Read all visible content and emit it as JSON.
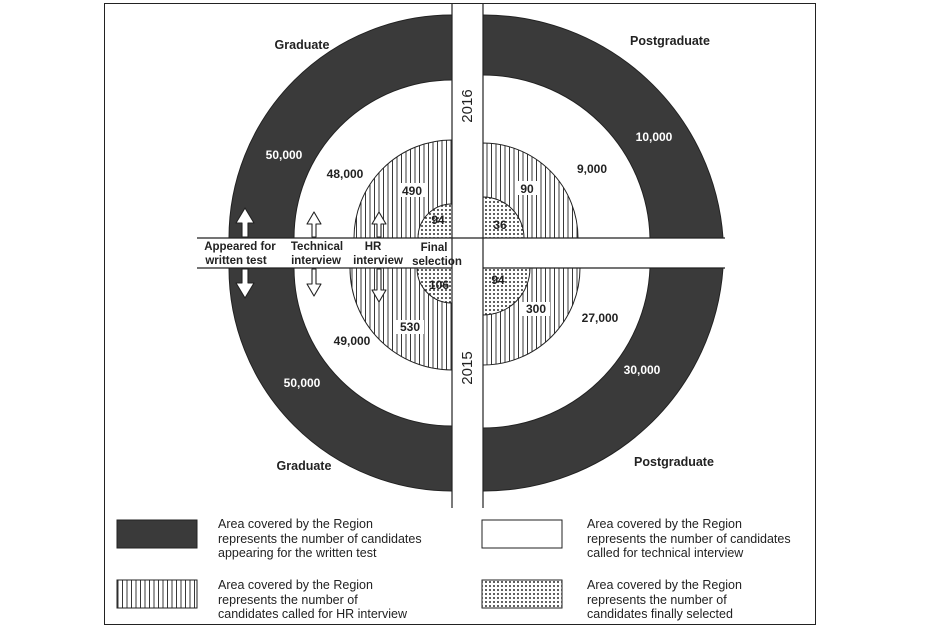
{
  "diagram": {
    "years": {
      "top": "2016",
      "bottom": "2015"
    },
    "quadrant_titles": {
      "top_left": "Graduate",
      "top_right": "Postgraduate",
      "bottom_left": "Graduate",
      "bottom_right": "Postgraduate"
    },
    "values": {
      "graduate_2016": {
        "written_test": "50,000",
        "technical_interview": "48,000",
        "hr_interview": "490",
        "final_selection": "94"
      },
      "postgraduate_2016": {
        "written_test": "10,000",
        "technical_interview": "9,000",
        "hr_interview": "90",
        "final_selection": "36"
      },
      "graduate_2015": {
        "written_test": "50,000",
        "technical_interview": "49,000",
        "hr_interview": "530",
        "final_selection": "106"
      },
      "postgraduate_2015": {
        "written_test": "30,000",
        "technical_interview": "27,000",
        "hr_interview": "300",
        "final_selection": "94"
      }
    },
    "stage_labels": {
      "written_test": [
        "Appeared for",
        "written test"
      ],
      "technical_interview": [
        "Technical",
        "interview"
      ],
      "hr_interview": [
        "HR",
        "interview"
      ],
      "final_selection": [
        "Final",
        "selection"
      ]
    },
    "colors": {
      "ring_fill": "#3a3a3a",
      "stroke": "#222222",
      "background": "#ffffff"
    }
  },
  "legend": [
    {
      "pattern": "solid",
      "lines": [
        "Area covered by the Region",
        "represents the  number of candidates",
        "appearing for the written test"
      ]
    },
    {
      "pattern": "blank",
      "lines": [
        "Area covered by the Region",
        "represents the number of candidates",
        "called for technical interview"
      ]
    },
    {
      "pattern": "vertical-lines",
      "lines": [
        "Area covered by the Region",
        "represents the number of",
        "candidates called for HR interview"
      ]
    },
    {
      "pattern": "dots",
      "lines": [
        "Area covered by the Region",
        "represents the number of",
        "candidates finally selected"
      ]
    }
  ]
}
